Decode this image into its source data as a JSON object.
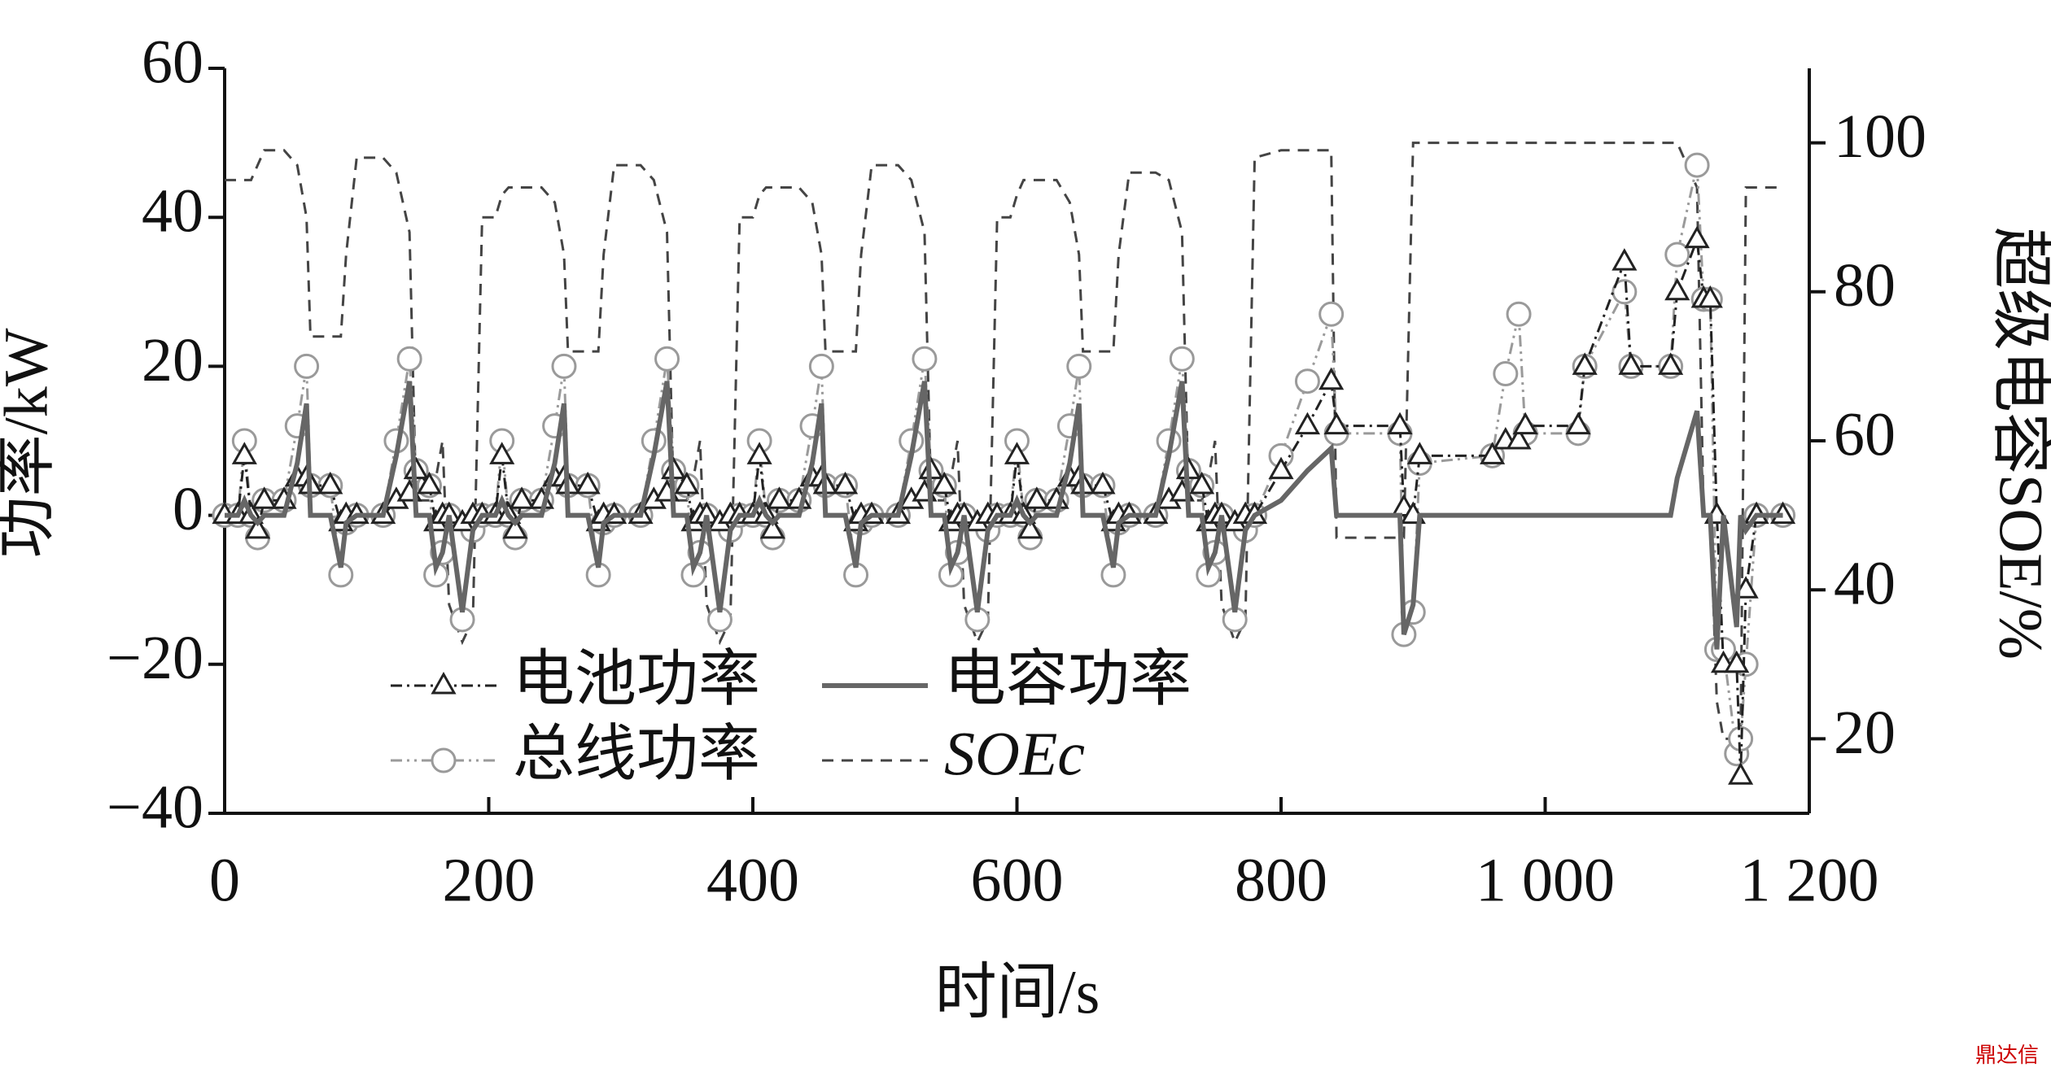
{
  "chart_data": {
    "type": "line",
    "xlabel": "时间/s",
    "ylabel": "功率/kW",
    "y2label": "超级电容SOE/%",
    "x": [
      0,
      10,
      15,
      20,
      25,
      30,
      45,
      55,
      62,
      65,
      80,
      88,
      92,
      100,
      120,
      130,
      140,
      145,
      155,
      160,
      165,
      170,
      180,
      188,
      195,
      205,
      210,
      215,
      220,
      225,
      240,
      250,
      257,
      260,
      275,
      283,
      287,
      295,
      315,
      325,
      335,
      340,
      350,
      355,
      360,
      365,
      375,
      383,
      390,
      400,
      405,
      410,
      415,
      420,
      435,
      445,
      452,
      455,
      470,
      478,
      482,
      490,
      510,
      520,
      530,
      535,
      545,
      550,
      555,
      560,
      570,
      578,
      585,
      595,
      600,
      605,
      610,
      615,
      630,
      640,
      647,
      650,
      665,
      673,
      677,
      685,
      705,
      715,
      725,
      730,
      740,
      745,
      750,
      755,
      765,
      773,
      780,
      800,
      820,
      838,
      842,
      890,
      893,
      900,
      905,
      960,
      970,
      980,
      985,
      1025,
      1030,
      1060,
      1065,
      1095,
      1100,
      1115,
      1120,
      1125,
      1130,
      1135,
      1145,
      1148,
      1152,
      1160,
      1180
    ],
    "series": [
      {
        "name": "电池功率",
        "color": "#222222",
        "marker": "triangle",
        "values": [
          0,
          0,
          8,
          0,
          -2,
          2,
          2,
          5,
          5,
          4,
          4,
          -1,
          0,
          0,
          0,
          2,
          3,
          6,
          4,
          -1,
          0,
          0,
          -1,
          0,
          0,
          0,
          8,
          0,
          -2,
          2,
          2,
          5,
          5,
          4,
          4,
          -1,
          0,
          0,
          0,
          2,
          3,
          6,
          4,
          -1,
          0,
          0,
          -1,
          0,
          0,
          0,
          8,
          0,
          -2,
          2,
          2,
          5,
          5,
          4,
          4,
          -1,
          0,
          0,
          0,
          2,
          3,
          6,
          4,
          -1,
          0,
          0,
          -1,
          0,
          0,
          0,
          8,
          0,
          -2,
          2,
          2,
          5,
          5,
          4,
          4,
          -1,
          0,
          0,
          0,
          2,
          3,
          6,
          4,
          -1,
          0,
          0,
          -1,
          0,
          0,
          6,
          12,
          18,
          12,
          12,
          1,
          0,
          8,
          8,
          10,
          10,
          12,
          12,
          20,
          34,
          20,
          20,
          30,
          37,
          29,
          29,
          0,
          -20,
          -20,
          -35,
          -10,
          0,
          0
        ]
      },
      {
        "name": "电容功率",
        "color": "#666666",
        "marker": "none",
        "values": [
          0,
          0,
          2,
          0,
          -1,
          0,
          0,
          7,
          15,
          0,
          0,
          -7,
          -1,
          0,
          0,
          8,
          18,
          0,
          0,
          -7,
          -5,
          0,
          -13,
          -2,
          0,
          0,
          2,
          0,
          -1,
          0,
          0,
          7,
          15,
          0,
          0,
          -7,
          -1,
          0,
          0,
          8,
          18,
          0,
          0,
          -7,
          -5,
          0,
          -13,
          -2,
          0,
          0,
          2,
          0,
          -1,
          0,
          0,
          7,
          15,
          0,
          0,
          -7,
          -1,
          0,
          0,
          8,
          18,
          0,
          0,
          -7,
          -5,
          0,
          -13,
          -2,
          0,
          0,
          2,
          0,
          -1,
          0,
          0,
          7,
          15,
          0,
          0,
          -7,
          -1,
          0,
          0,
          8,
          18,
          0,
          0,
          -7,
          -5,
          0,
          -13,
          -2,
          0,
          2,
          6,
          9,
          0,
          0,
          -16,
          -12,
          0,
          0,
          0,
          0,
          0,
          0,
          0,
          0,
          0,
          0,
          5,
          14,
          0,
          0,
          -18,
          0,
          -15,
          0,
          -2,
          0,
          0
        ]
      },
      {
        "name": "总线功率",
        "color": "#9a9a9a",
        "marker": "circle",
        "values": [
          0,
          0,
          10,
          0,
          -3,
          2,
          2,
          12,
          20,
          4,
          4,
          -8,
          -1,
          0,
          0,
          10,
          21,
          6,
          4,
          -8,
          -5,
          0,
          -14,
          -2,
          0,
          0,
          10,
          0,
          -3,
          2,
          2,
          12,
          20,
          4,
          4,
          -8,
          -1,
          0,
          0,
          10,
          21,
          6,
          4,
          -8,
          -5,
          0,
          -14,
          -2,
          0,
          0,
          10,
          0,
          -3,
          2,
          2,
          12,
          20,
          4,
          4,
          -8,
          -1,
          0,
          0,
          10,
          21,
          6,
          4,
          -8,
          -5,
          0,
          -14,
          -2,
          0,
          0,
          10,
          0,
          -3,
          2,
          2,
          12,
          20,
          4,
          4,
          -8,
          -1,
          0,
          0,
          10,
          21,
          6,
          4,
          -8,
          -5,
          0,
          -14,
          -2,
          0,
          8,
          18,
          27,
          11,
          11,
          -16,
          -13,
          7,
          8,
          19,
          27,
          11,
          11,
          20,
          30,
          20,
          20,
          35,
          47,
          29,
          29,
          -18,
          -18,
          -32,
          -30,
          -20,
          0,
          0
        ]
      },
      {
        "name": "SOEc",
        "color": "#444444",
        "marker": "none",
        "axis": "y2",
        "values": [
          95,
          95,
          95,
          95,
          97,
          99,
          99,
          97,
          90,
          74,
          74,
          74,
          85,
          98,
          98,
          96,
          88,
          52,
          52,
          55,
          60,
          38,
          33,
          36,
          90,
          90,
          93,
          94,
          94,
          94,
          94,
          92,
          85,
          72,
          72,
          72,
          85,
          97,
          97,
          95,
          88,
          52,
          52,
          55,
          60,
          38,
          33,
          36,
          90,
          90,
          93,
          94,
          94,
          94,
          94,
          92,
          85,
          72,
          72,
          72,
          85,
          97,
          97,
          95,
          88,
          52,
          52,
          55,
          60,
          38,
          33,
          36,
          90,
          90,
          93,
          95,
          95,
          95,
          95,
          92,
          85,
          72,
          72,
          72,
          85,
          96,
          96,
          95,
          88,
          52,
          52,
          55,
          60,
          38,
          33,
          36,
          98,
          99,
          99,
          99,
          47,
          47,
          47,
          100,
          100,
          100,
          100,
          100,
          100,
          100,
          100,
          100,
          100,
          100,
          100,
          94,
          50,
          50,
          25,
          20,
          20,
          20,
          94,
          94,
          94
        ]
      }
    ],
    "xlim": [
      0,
      1200
    ],
    "xticks": [
      0,
      200,
      400,
      600,
      800,
      {
        "value": 1000,
        "label": "1 000"
      },
      {
        "value": 1200,
        "label": "1 200"
      }
    ],
    "ylim": [
      -40,
      60
    ],
    "yticks": [
      {
        "value": -40,
        "label": "−40"
      },
      {
        "value": -20,
        "label": "−20"
      },
      0,
      20,
      40,
      60
    ],
    "y2lim": [
      10,
      110
    ],
    "y2ticks": [
      20,
      40,
      60,
      80,
      100
    ],
    "watermark": "鼎达信"
  }
}
